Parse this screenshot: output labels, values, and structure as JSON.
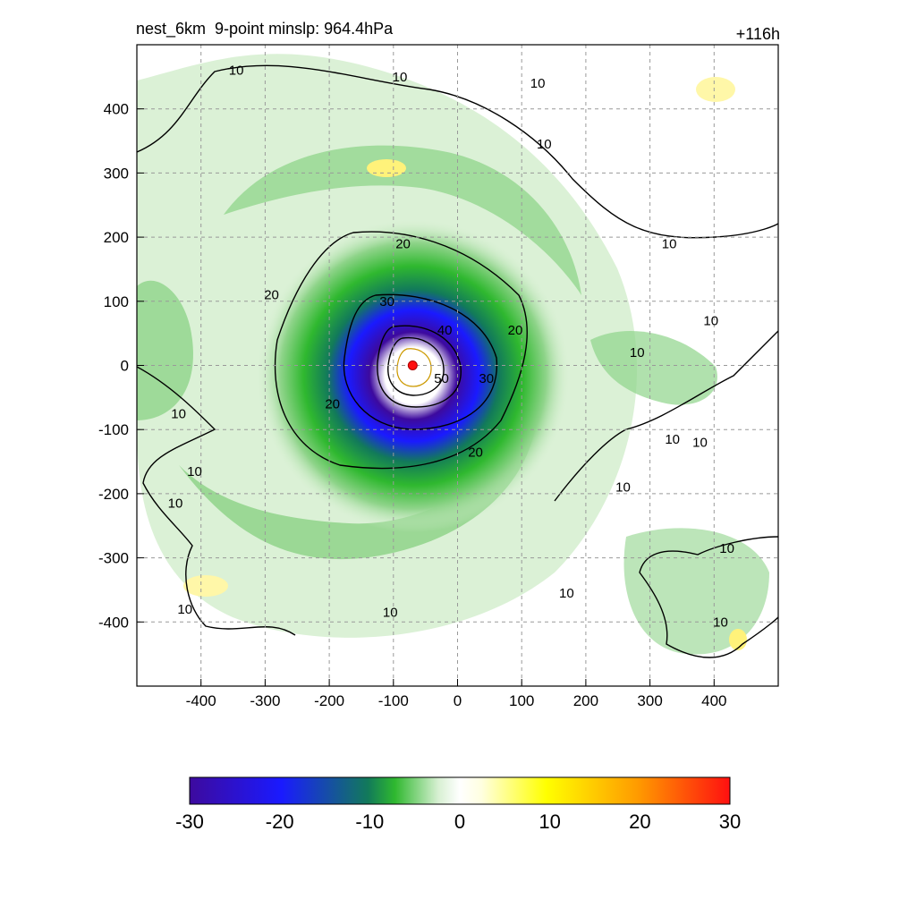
{
  "header": {
    "left_title": "nest_6km  9-point minslp: 964.4hPa",
    "right_title": "+116h"
  },
  "colors": {
    "green_light": "#d7f0d2",
    "green_mid": "#8fd48a",
    "green_dark": "#2fb82f",
    "teal": "#127a5a",
    "blue": "#1a1aff",
    "purple": "#3d0a9e",
    "yellow": "#fff27a",
    "red": "#ff1010",
    "contour": "#000000",
    "grid": "#999999"
  },
  "chart_data": {
    "type": "heatmap",
    "title": "nest_6km  9-point minslp: 964.4hPa",
    "time_label": "+116h",
    "xlim": [
      -500,
      500
    ],
    "ylim": [
      -500,
      500
    ],
    "x_ticks": [
      -400,
      -300,
      -200,
      -100,
      0,
      100,
      200,
      300,
      400
    ],
    "y_ticks": [
      400,
      300,
      200,
      100,
      0,
      -100,
      -200,
      -300,
      -400
    ],
    "grid": true,
    "center": {
      "x": -70,
      "y": 0
    },
    "contour_levels": [
      10,
      20,
      30,
      40,
      50
    ],
    "contour_labels": [
      {
        "text": "10",
        "x": -345,
        "y": 460
      },
      {
        "text": "10",
        "x": -90,
        "y": 450
      },
      {
        "text": "10",
        "x": 125,
        "y": 440
      },
      {
        "text": "10",
        "x": 135,
        "y": 345
      },
      {
        "text": "10",
        "x": 330,
        "y": 190
      },
      {
        "text": "10",
        "x": 395,
        "y": 70
      },
      {
        "text": "10",
        "x": 280,
        "y": 20
      },
      {
        "text": "10",
        "x": 335,
        "y": -115
      },
      {
        "text": "10",
        "x": 378,
        "y": -120
      },
      {
        "text": "10",
        "x": 258,
        "y": -190
      },
      {
        "text": "10",
        "x": 420,
        "y": -285
      },
      {
        "text": "10",
        "x": 170,
        "y": -355
      },
      {
        "text": "10",
        "x": 410,
        "y": -400
      },
      {
        "text": "10",
        "x": -435,
        "y": -75
      },
      {
        "text": "10",
        "x": -410,
        "y": -165
      },
      {
        "text": "10",
        "x": -440,
        "y": -215
      },
      {
        "text": "10",
        "x": -425,
        "y": -380
      },
      {
        "text": "10",
        "x": -105,
        "y": -385
      },
      {
        "text": "20",
        "x": -85,
        "y": 190
      },
      {
        "text": "20",
        "x": -290,
        "y": 110
      },
      {
        "text": "20",
        "x": 90,
        "y": 55
      },
      {
        "text": "20",
        "x": -195,
        "y": -60
      },
      {
        "text": "20",
        "x": 28,
        "y": -135
      },
      {
        "text": "30",
        "x": -110,
        "y": 100
      },
      {
        "text": "30",
        "x": 45,
        "y": -20
      },
      {
        "text": "40",
        "x": -20,
        "y": 55
      },
      {
        "text": "50",
        "x": -25,
        "y": -20
      }
    ],
    "colorbar": {
      "min": -30,
      "max": 30,
      "ticks": [
        "-30",
        "-20",
        "-10",
        "0",
        "10",
        "20",
        "30"
      ]
    }
  }
}
